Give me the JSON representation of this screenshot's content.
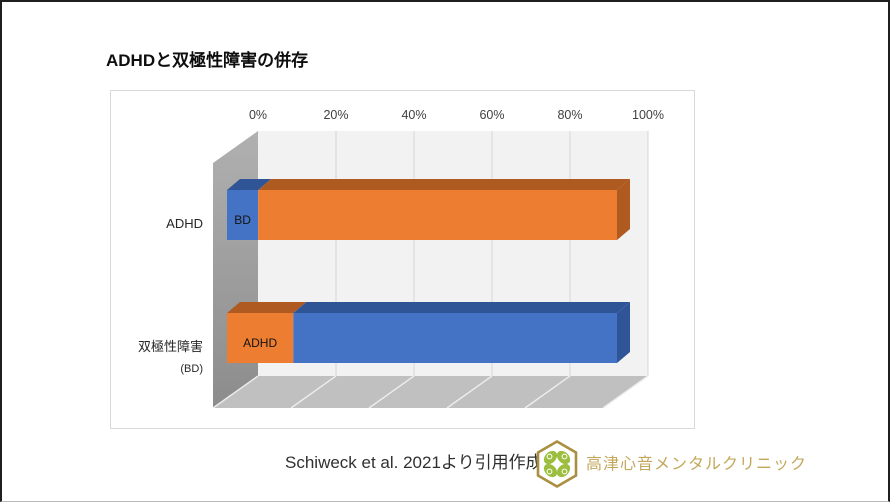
{
  "page": {
    "title": "ADHDと双極性障害の併存",
    "footer": {
      "source_text": "Schiweck et al. 2021より引用作成",
      "clinic_name": "高津心音メンタルクリニック"
    }
  },
  "palette": {
    "blue": "#4472C4",
    "blue_dark": "#2F5597",
    "orange": "#ED7D31",
    "orange_dark": "#AE5A21",
    "wall": "#F2F2F2",
    "gridline": "#DBDBDB",
    "side_wall_top": "#B0B0B0",
    "side_wall_bottom": "#8C8C8C",
    "floor": "#C0C0C0",
    "floor_line": "#EDEDED",
    "tick_color": "#404040",
    "category_color": "#262626",
    "segment_label_color": "#141414",
    "logo_gold": "#A98F3F",
    "logo_green": "#9CBE3E"
  },
  "chart_data": {
    "type": "bar",
    "subtype": "horizontal-stacked-100-3d",
    "title": "ADHDと双極性障害の併存",
    "xlabel": "",
    "ylabel": "",
    "xlim": [
      0,
      100
    ],
    "x_ticks": [
      "0%",
      "20%",
      "40%",
      "60%",
      "80%",
      "100%"
    ],
    "grid": "vertical",
    "legend": "none",
    "rows": [
      {
        "category": "ADHD",
        "category_sub": "",
        "segments": [
          {
            "label": "BD",
            "value": 8,
            "color": "blue"
          },
          {
            "label": "",
            "value": 92,
            "color": "orange"
          }
        ]
      },
      {
        "category": "双極性障害",
        "category_sub": "(BD)",
        "segments": [
          {
            "label": "ADHD",
            "value": 17,
            "color": "orange"
          },
          {
            "label": "",
            "value": 83,
            "color": "blue"
          }
        ]
      }
    ]
  }
}
